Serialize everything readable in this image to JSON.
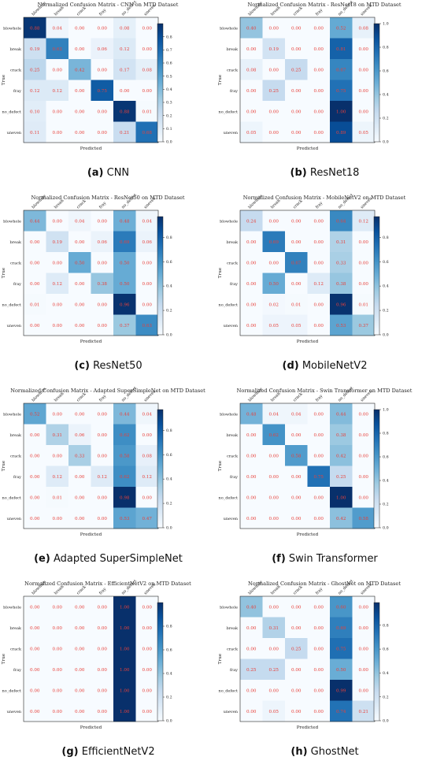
{
  "row_labels": [
    "blowhole",
    "break",
    "crack",
    "fray",
    "no_defect",
    "uneven"
  ],
  "col_labels": [
    "blowhole",
    "break",
    "crack",
    "fray",
    "no_defect",
    "uneven"
  ],
  "xlabel": "Predicted",
  "ylabel": "True",
  "colorbar_ticks": [
    [
      "0.0",
      "0.1",
      "0.2",
      "0.3",
      "0.4",
      "0.5",
      "0.6",
      "0.7",
      "0.8"
    ],
    [
      "0.0",
      "0.2",
      "0.4",
      "0.6",
      "0.8",
      "1.0"
    ],
    [
      "0.0",
      "0.2",
      "0.4",
      "0.6",
      "0.8"
    ],
    [
      "0.0",
      "0.2",
      "0.4",
      "0.6",
      "0.8"
    ],
    [
      "0.0",
      "0.2",
      "0.4",
      "0.6",
      "0.8"
    ],
    [
      "0.0",
      "0.2",
      "0.4",
      "0.6",
      "0.8",
      "1.0"
    ],
    [
      "0.0",
      "0.2",
      "0.4",
      "0.6",
      "0.8"
    ],
    [
      "0.0",
      "0.2",
      "0.4",
      "0.6",
      "0.8"
    ]
  ],
  "colors": {
    "cell_text": "#e8403a",
    "cmap_low": "#f7fbff",
    "cmap_high": "#08306b"
  },
  "chart_data": [
    {
      "type": "heatmap",
      "caption_letter": "(a)",
      "caption_name": "CNN",
      "title": "Normalized Confusion Matrix - CNN on MTD Dataset",
      "vmax": 0.9,
      "values": [
        [
          0.88,
          0.04,
          0.0,
          0.0,
          0.08,
          0.0
        ],
        [
          0.19,
          0.62,
          0.0,
          0.06,
          0.12,
          0.0
        ],
        [
          0.25,
          0.0,
          0.42,
          0.0,
          0.17,
          0.08
        ],
        [
          0.12,
          0.12,
          0.0,
          0.75,
          0.0,
          0.0
        ],
        [
          0.1,
          0.0,
          0.0,
          0.0,
          0.88,
          0.01
        ],
        [
          0.11,
          0.0,
          0.0,
          0.0,
          0.21,
          0.68
        ]
      ]
    },
    {
      "type": "heatmap",
      "caption_letter": "(b)",
      "caption_name": "ResNet18",
      "title": "Normalized Confusion Matrix - ResNet18 on MTD Dataset",
      "vmax": 1.0,
      "values": [
        [
          0.4,
          0.0,
          0.0,
          0.0,
          0.52,
          0.08
        ],
        [
          0.0,
          0.19,
          0.0,
          0.0,
          0.81,
          0.0
        ],
        [
          0.08,
          0.0,
          0.25,
          0.0,
          0.67,
          0.0
        ],
        [
          0.0,
          0.25,
          0.0,
          0.0,
          0.75,
          0.0
        ],
        [
          0.0,
          0.0,
          0.0,
          0.0,
          1.0,
          0.0
        ],
        [
          0.05,
          0.0,
          0.0,
          0.0,
          0.89,
          0.05
        ]
      ]
    },
    {
      "type": "heatmap",
      "caption_letter": "(c)",
      "caption_name": "ResNet50",
      "title": "Normalized Confusion Matrix - ResNet50 on MTD Dataset",
      "vmax": 0.97,
      "values": [
        [
          0.44,
          0.0,
          0.04,
          0.0,
          0.48,
          0.04
        ],
        [
          0.0,
          0.19,
          0.0,
          0.06,
          0.69,
          0.06
        ],
        [
          0.0,
          0.0,
          0.5,
          0.0,
          0.5,
          0.0
        ],
        [
          0.0,
          0.12,
          0.0,
          0.38,
          0.5,
          0.0
        ],
        [
          0.01,
          0.0,
          0.0,
          0.0,
          0.96,
          0.0
        ],
        [
          0.0,
          0.0,
          0.0,
          0.0,
          0.37,
          0.63
        ]
      ]
    },
    {
      "type": "heatmap",
      "caption_letter": "(d)",
      "caption_name": "MobileNetV2",
      "title": "Normalized Confusion Matrix - MobileNetV2 on MTD Dataset",
      "vmax": 0.97,
      "values": [
        [
          0.24,
          0.0,
          0.0,
          0.0,
          0.64,
          0.12
        ],
        [
          0.0,
          0.69,
          0.0,
          0.0,
          0.31,
          0.0
        ],
        [
          0.0,
          0.0,
          0.67,
          0.0,
          0.33,
          0.0
        ],
        [
          0.0,
          0.5,
          0.0,
          0.12,
          0.38,
          0.0
        ],
        [
          0.0,
          0.02,
          0.01,
          0.0,
          0.96,
          0.01
        ],
        [
          0.0,
          0.05,
          0.05,
          0.0,
          0.53,
          0.37
        ]
      ]
    },
    {
      "type": "heatmap",
      "caption_letter": "(e)",
      "caption_name": "Adapted SuperSimpleNet",
      "title": "Normalized Confusion Matrix - Adapted SuperSimpleNet on MTD Dataset",
      "vmax": 0.97,
      "values": [
        [
          0.52,
          0.0,
          0.0,
          0.0,
          0.44,
          0.04
        ],
        [
          0.0,
          0.31,
          0.06,
          0.0,
          0.62,
          0.0
        ],
        [
          0.0,
          0.0,
          0.33,
          0.0,
          0.58,
          0.08
        ],
        [
          0.0,
          0.12,
          0.0,
          0.12,
          0.62,
          0.12
        ],
        [
          0.0,
          0.01,
          0.0,
          0.0,
          0.98,
          0.0
        ],
        [
          0.0,
          0.0,
          0.0,
          0.0,
          0.53,
          0.47
        ]
      ]
    },
    {
      "type": "heatmap",
      "caption_letter": "(f)",
      "caption_name": "Swin Transformer",
      "title": "Normalized Confusion Matrix - Swin Transformer on MTD Dataset",
      "vmax": 1.0,
      "values": [
        [
          0.48,
          0.04,
          0.04,
          0.0,
          0.44,
          0.0
        ],
        [
          0.0,
          0.62,
          0.0,
          0.0,
          0.38,
          0.0
        ],
        [
          0.0,
          0.0,
          0.58,
          0.0,
          0.42,
          0.0
        ],
        [
          0.0,
          0.0,
          0.0,
          0.75,
          0.25,
          0.0
        ],
        [
          0.0,
          0.0,
          0.0,
          0.0,
          1.0,
          0.0
        ],
        [
          0.0,
          0.0,
          0.0,
          0.0,
          0.42,
          0.58
        ]
      ]
    },
    {
      "type": "heatmap",
      "caption_letter": "(g)",
      "caption_name": "EfficientNetV2",
      "title": "Normalized Confusion Matrix - EfficientNetV2 on MTD Dataset",
      "vmax": 1.0,
      "values": [
        [
          0.0,
          0.0,
          0.0,
          0.0,
          1.0,
          0.0
        ],
        [
          0.0,
          0.0,
          0.0,
          0.0,
          1.0,
          0.0
        ],
        [
          0.0,
          0.0,
          0.0,
          0.0,
          1.0,
          0.0
        ],
        [
          0.0,
          0.0,
          0.0,
          0.0,
          1.0,
          0.0
        ],
        [
          0.0,
          0.0,
          0.0,
          0.0,
          1.0,
          0.0
        ],
        [
          0.0,
          0.0,
          0.0,
          0.0,
          1.0,
          0.0
        ]
      ]
    },
    {
      "type": "heatmap",
      "caption_letter": "(h)",
      "caption_name": "GhostNet",
      "title": "Normalized Confusion Matrix - GhostNet on MTD Dataset",
      "vmax": 0.99,
      "values": [
        [
          0.4,
          0.0,
          0.0,
          0.0,
          0.6,
          0.0
        ],
        [
          0.0,
          0.31,
          0.0,
          0.0,
          0.69,
          0.0
        ],
        [
          0.0,
          0.0,
          0.25,
          0.0,
          0.75,
          0.0
        ],
        [
          0.25,
          0.25,
          0.0,
          0.0,
          0.5,
          0.0
        ],
        [
          0.0,
          0.0,
          0.0,
          0.0,
          0.99,
          0.0
        ],
        [
          0.0,
          0.05,
          0.0,
          0.0,
          0.74,
          0.21
        ]
      ]
    }
  ]
}
